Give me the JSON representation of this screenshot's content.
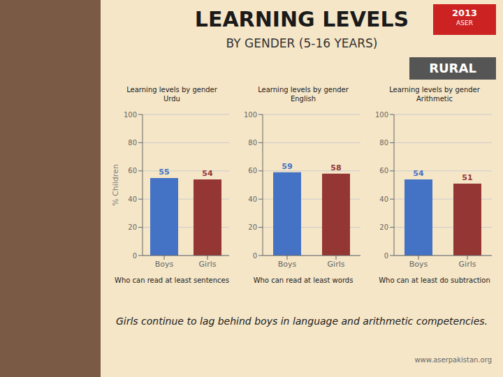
{
  "title": "LEARNING LEVELS",
  "subtitle": "BY GENDER (5-16 YEARS)",
  "annotations": [
    "RURAL",
    "2013",
    "ASER",
    "Girls continue to lag behind boys in language and arithmetic competencies.",
    "www.aserpakistan.org"
  ],
  "chart_data": [
    {
      "type": "bar",
      "title": "Learning levels by gender",
      "subtitle": "Urdu",
      "annotations": [
        "Who can read at least sentences"
      ],
      "categories": [
        "Boys",
        "Girls"
      ],
      "values": [
        55,
        54
      ],
      "colors": [
        "#4472C4",
        "#943634"
      ],
      "ylim": [
        0,
        100
      ],
      "yticks": [
        0,
        20,
        40,
        60,
        80,
        100
      ],
      "ylabel": "% Children",
      "grid": true,
      "data_labels": true
    },
    {
      "type": "bar",
      "title": "Learning levels by gender",
      "subtitle": "English",
      "annotations": [
        "Who can read at least words"
      ],
      "categories": [
        "Boys",
        "Girls"
      ],
      "values": [
        59,
        58
      ],
      "colors": [
        "#4472C4",
        "#943634"
      ],
      "ylim": [
        0,
        100
      ],
      "yticks": [
        0,
        20,
        40,
        60,
        80,
        100
      ],
      "grid": true,
      "data_labels": true
    },
    {
      "type": "bar",
      "title": "Learning levels by gender",
      "subtitle": "Arithmetic",
      "annotations": [
        "Who can at least do subtraction"
      ],
      "categories": [
        "Boys",
        "Girls"
      ],
      "values": [
        54,
        51
      ],
      "colors": [
        "#4472C4",
        "#943634"
      ],
      "ylim": [
        0,
        100
      ],
      "yticks": [
        0,
        20,
        40,
        60,
        80,
        100
      ],
      "grid": true,
      "data_labels": true
    }
  ]
}
